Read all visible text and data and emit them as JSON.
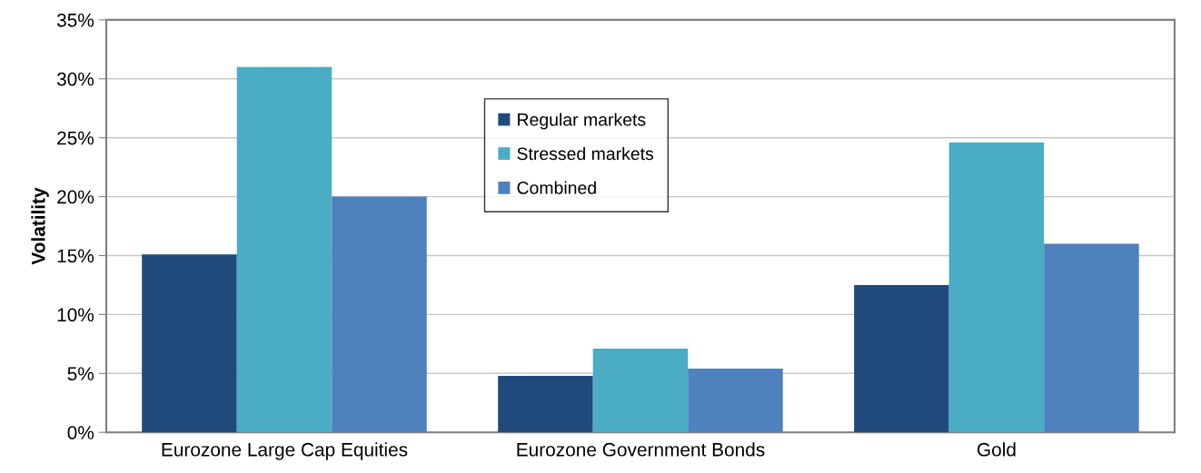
{
  "chart_data": {
    "type": "bar",
    "ylabel": "Volatility",
    "categories": [
      "Eurozone Large Cap Equities",
      "Eurozone Government Bonds",
      "Gold"
    ],
    "series": [
      {
        "name": "Regular markets",
        "color": "#214a7c",
        "values": [
          15.1,
          4.8,
          12.5
        ]
      },
      {
        "name": "Stressed markets",
        "color": "#4bacc6",
        "values": [
          31.0,
          7.1,
          24.6
        ]
      },
      {
        "name": "Combined",
        "color": "#4f81bd",
        "values": [
          20.0,
          5.4,
          16.0
        ]
      }
    ],
    "ylim": [
      0,
      35
    ],
    "yticks": [
      {
        "value": 0,
        "label": "0%"
      },
      {
        "value": 5,
        "label": "5%"
      },
      {
        "value": 10,
        "label": "10%"
      },
      {
        "value": 15,
        "label": "15%"
      },
      {
        "value": 20,
        "label": "20%"
      },
      {
        "value": 25,
        "label": "25%"
      },
      {
        "value": 30,
        "label": "30%"
      },
      {
        "value": 35,
        "label": "35%"
      }
    ],
    "grid": "y",
    "legend": "top"
  }
}
